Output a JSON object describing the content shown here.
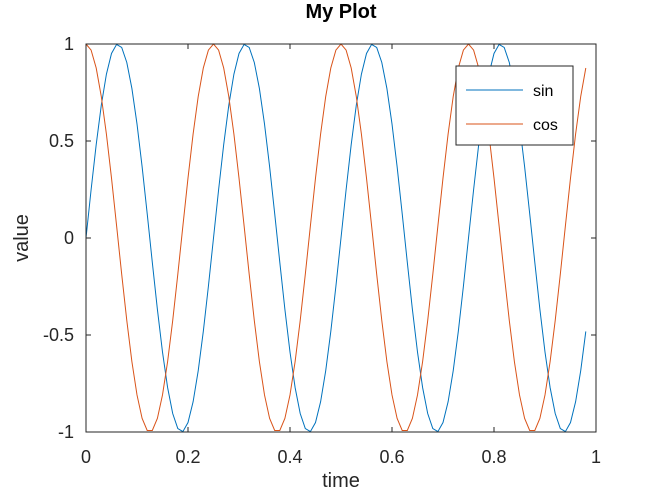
{
  "chart_data": {
    "type": "line",
    "title": "My Plot",
    "xlabel": "time",
    "ylabel": "value",
    "xlim": [
      0,
      1
    ],
    "ylim": [
      -1,
      1
    ],
    "xticks": [
      0,
      0.2,
      0.4,
      0.6,
      0.8,
      1
    ],
    "xtick_labels": [
      "0",
      "0.2",
      "0.4",
      "0.6",
      "0.8",
      "1"
    ],
    "yticks": [
      -1,
      -0.5,
      0,
      0.5,
      1
    ],
    "ytick_labels": [
      "-1",
      "-0.5",
      "0",
      "0.5",
      "1"
    ],
    "grid": false,
    "legend_position": "top-right",
    "x": [
      0,
      0.01,
      0.02,
      0.03,
      0.04,
      0.05,
      0.06,
      0.07,
      0.08,
      0.09,
      0.1,
      0.11,
      0.12,
      0.13,
      0.14,
      0.15,
      0.16,
      0.17,
      0.18,
      0.19,
      0.2,
      0.21,
      0.22,
      0.23,
      0.24,
      0.25,
      0.26,
      0.27,
      0.28,
      0.29,
      0.3,
      0.31,
      0.32,
      0.33,
      0.34,
      0.35,
      0.36,
      0.37,
      0.38,
      0.39,
      0.4,
      0.41,
      0.42,
      0.43,
      0.44,
      0.45,
      0.46,
      0.47,
      0.48,
      0.49,
      0.5,
      0.51,
      0.52,
      0.53,
      0.54,
      0.55,
      0.56,
      0.57,
      0.58,
      0.59,
      0.6,
      0.61,
      0.62,
      0.63,
      0.64,
      0.65,
      0.66,
      0.67,
      0.68,
      0.69,
      0.7,
      0.71,
      0.72,
      0.73,
      0.74,
      0.75,
      0.76,
      0.77,
      0.78,
      0.79,
      0.8,
      0.81,
      0.82,
      0.83,
      0.84,
      0.85,
      0.86,
      0.87,
      0.88,
      0.89,
      0.9,
      0.91,
      0.92,
      0.93,
      0.94,
      0.95,
      0.96,
      0.97,
      0.98
    ],
    "series": [
      {
        "name": "sin",
        "color": "#0072bd",
        "values": [
          0,
          0.2487,
          0.4818,
          0.6845,
          0.8443,
          0.9511,
          0.998,
          0.9823,
          0.9048,
          0.7705,
          0.5878,
          0.3681,
          0.1253,
          -0.1253,
          -0.3681,
          -0.5878,
          -0.7705,
          -0.9048,
          -0.9823,
          -0.998,
          -0.9511,
          -0.8443,
          -0.6845,
          -0.4818,
          -0.2487,
          0,
          0.2487,
          0.4818,
          0.6845,
          0.8443,
          0.9511,
          0.998,
          0.9823,
          0.9048,
          0.7705,
          0.5878,
          0.3681,
          0.1253,
          -0.1253,
          -0.3681,
          -0.5878,
          -0.7705,
          -0.9048,
          -0.9823,
          -0.998,
          -0.9511,
          -0.8443,
          -0.6845,
          -0.4818,
          -0.2487,
          0,
          0.2487,
          0.4818,
          0.6845,
          0.8443,
          0.9511,
          0.998,
          0.9823,
          0.9048,
          0.7705,
          0.5878,
          0.3681,
          0.1253,
          -0.1253,
          -0.3681,
          -0.5878,
          -0.7705,
          -0.9048,
          -0.9823,
          -0.998,
          -0.9511,
          -0.8443,
          -0.6845,
          -0.4818,
          -0.2487,
          0,
          0.2487,
          0.4818,
          0.6845,
          0.8443,
          0.9511,
          0.998,
          0.9823,
          0.9048,
          0.7705,
          0.5878,
          0.3681,
          0.1253,
          -0.1253,
          -0.3681,
          -0.5878,
          -0.7705,
          -0.9048,
          -0.9823,
          -0.998,
          -0.9511,
          -0.8443,
          -0.6845,
          -0.4818
        ]
      },
      {
        "name": "cos",
        "color": "#d95319",
        "values": [
          1,
          0.9686,
          0.8763,
          0.729,
          0.5358,
          0.309,
          0.0628,
          -0.1874,
          -0.4258,
          -0.6374,
          -0.809,
          -0.9298,
          -0.9921,
          -0.9921,
          -0.9298,
          -0.809,
          -0.6374,
          -0.4258,
          -0.1874,
          0.0628,
          0.309,
          0.5358,
          0.729,
          0.8763,
          0.9686,
          1,
          0.9686,
          0.8763,
          0.729,
          0.5358,
          0.309,
          0.0628,
          -0.1874,
          -0.4258,
          -0.6374,
          -0.809,
          -0.9298,
          -0.9921,
          -0.9921,
          -0.9298,
          -0.809,
          -0.6374,
          -0.4258,
          -0.1874,
          0.0628,
          0.309,
          0.5358,
          0.729,
          0.8763,
          0.9686,
          1,
          0.9686,
          0.8763,
          0.729,
          0.5358,
          0.309,
          0.0628,
          -0.1874,
          -0.4258,
          -0.6374,
          -0.809,
          -0.9298,
          -0.9921,
          -0.9921,
          -0.9298,
          -0.809,
          -0.6374,
          -0.4258,
          -0.1874,
          0.0628,
          0.309,
          0.5358,
          0.729,
          0.8763,
          0.9686,
          1,
          0.9686,
          0.8763,
          0.729,
          0.5358,
          0.309,
          0.0628,
          -0.1874,
          -0.4258,
          -0.6374,
          -0.809,
          -0.9298,
          -0.9921,
          -0.9921,
          -0.9298,
          -0.809,
          -0.6374,
          -0.4258,
          -0.1874,
          0.0628,
          0.309,
          0.5358,
          0.729,
          0.8763
        ]
      }
    ]
  }
}
